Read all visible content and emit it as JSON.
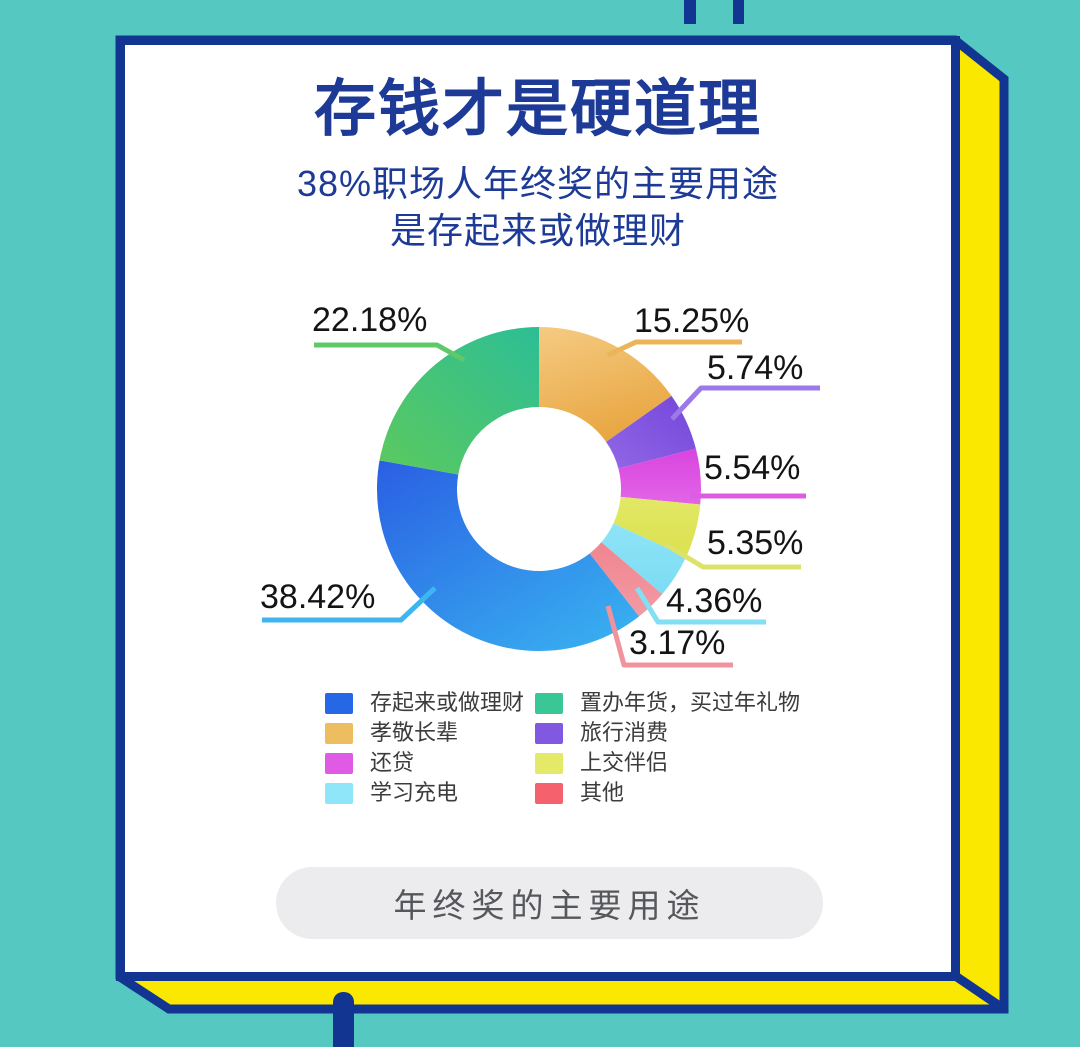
{
  "page": {
    "background_color": "#55C8C2",
    "frame": {
      "border_color": "#123592",
      "card_color": "#FFFFFF",
      "side_panel_color": "#FAE800"
    }
  },
  "header": {
    "title": "存钱才是硬道理",
    "subtitle_line1": "38%职场人年终奖的主要用途",
    "subtitle_line2": "是存起来或做理财",
    "text_color": "#1D3B96"
  },
  "chart_data": {
    "type": "pie",
    "donut": true,
    "title": "年终奖的主要用途",
    "unit": "%",
    "start_angle_deg": 0,
    "direction": "clockwise",
    "categories": [
      "孝敬长辈",
      "旅行消费",
      "还贷",
      "上交伴侣",
      "学习充电",
      "其他",
      "存起来或做理财",
      "置办年货，买过年礼物"
    ],
    "values": [
      15.25,
      5.74,
      5.54,
      5.35,
      4.36,
      3.17,
      38.42,
      22.18
    ],
    "series": [
      {
        "label": "孝敬长辈",
        "value": 15.25,
        "display": "15.25%",
        "gradient": [
          "#F5CB82",
          "#E9A743"
        ],
        "dir": [
          0,
          0,
          0.35,
          1
        ],
        "leader_color": "#ECB458"
      },
      {
        "label": "旅行消费",
        "value": 5.74,
        "display": "5.74%",
        "gradient": [
          "#7445DB",
          "#9168E5"
        ],
        "dir": [
          1,
          0,
          0,
          1
        ],
        "leader_color": "#9B79E8"
      },
      {
        "label": "还贷",
        "value": 5.54,
        "display": "5.54%",
        "gradient": [
          "#D944DE",
          "#E165E7"
        ],
        "dir": [
          0,
          0,
          0,
          1
        ],
        "leader_color": "#DC5CE2"
      },
      {
        "label": "上交伴侣",
        "value": 5.35,
        "display": "5.35%",
        "gradient": [
          "#E2E866",
          "#DBE14E"
        ],
        "dir": [
          0,
          0,
          0,
          1
        ],
        "leader_color": "#DDE36A"
      },
      {
        "label": "学习充电",
        "value": 4.36,
        "display": "4.36%",
        "gradient": [
          "#8EE4F7",
          "#7CDCF3"
        ],
        "dir": [
          0,
          0,
          0,
          1
        ],
        "leader_color": "#82DFF4"
      },
      {
        "label": "其他",
        "value": 3.17,
        "display": "3.17%",
        "gradient": [
          "#F0858F",
          "#F29AA3"
        ],
        "dir": [
          0,
          0,
          0,
          1
        ],
        "leader_color": "#F0939D"
      },
      {
        "label": "存起来或做理财",
        "value": 38.42,
        "display": "38.42%",
        "gradient": [
          "#2A5FE3",
          "#38AFF0"
        ],
        "dir": [
          0,
          0,
          0.85,
          1
        ],
        "leader_color": "#3DB6EF"
      },
      {
        "label": "置办年货，买过年礼物",
        "value": 22.18,
        "display": "22.18%",
        "gradient": [
          "#2DBE95",
          "#5CC95E"
        ],
        "dir": [
          1,
          0,
          0,
          1
        ],
        "leader_color": "#5FC96A"
      }
    ],
    "legend": {
      "position": "bottom",
      "left_column": [
        {
          "label": "存起来或做理财",
          "color": "#2667E6"
        },
        {
          "label": "孝敬长辈",
          "color": "#EDBE5F"
        },
        {
          "label": "还贷",
          "color": "#DF5BE6"
        },
        {
          "label": "学习充电",
          "color": "#8EE6F8"
        }
      ],
      "right_column": [
        {
          "label": "置办年货，买过年礼物",
          "color": "#3AC795"
        },
        {
          "label": "旅行消费",
          "color": "#8159E0"
        },
        {
          "label": "上交伴侣",
          "color": "#E4EA67"
        },
        {
          "label": "其他",
          "color": "#F5616D"
        }
      ]
    }
  },
  "footer": {
    "pill_label": "年终奖的主要用途",
    "pill_bg": "#ECECEE",
    "pill_text_color": "#56575B"
  },
  "colors": {
    "label_ink": "#141414"
  }
}
